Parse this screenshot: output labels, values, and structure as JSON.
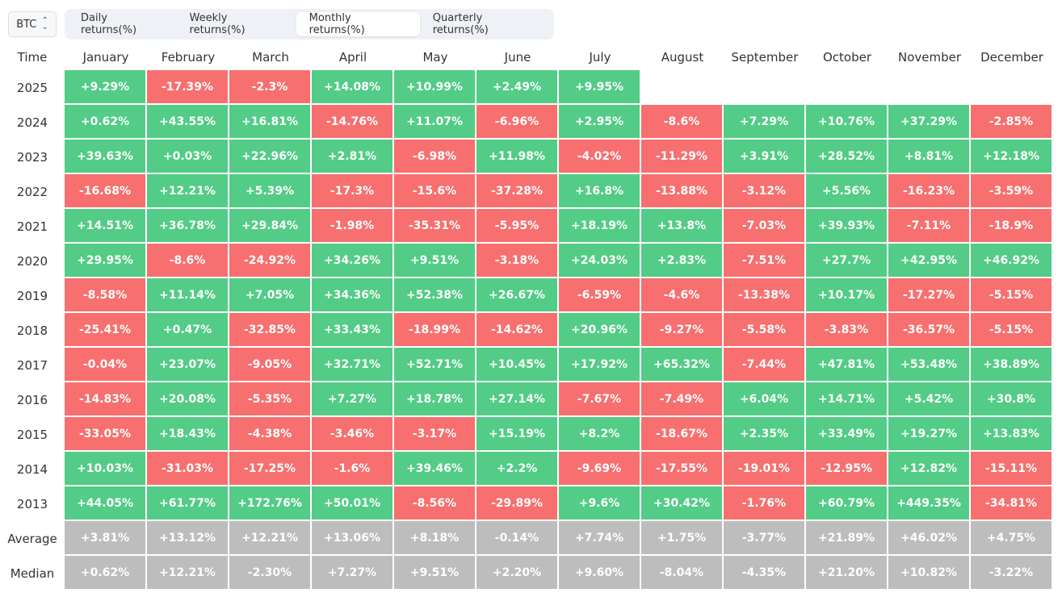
{
  "asset_selector": {
    "value": "BTC"
  },
  "tabs": [
    {
      "label": "Daily returns(%)",
      "active": false
    },
    {
      "label": "Weekly returns(%)",
      "active": false
    },
    {
      "label": "Monthly returns(%)",
      "active": true
    },
    {
      "label": "Quarterly returns(%)",
      "active": false
    }
  ],
  "table": {
    "time_header": "Time",
    "months": [
      "January",
      "February",
      "March",
      "April",
      "May",
      "June",
      "July",
      "August",
      "September",
      "October",
      "November",
      "December"
    ],
    "rows": [
      {
        "label": "2025",
        "values": [
          "+9.29%",
          "-17.39%",
          "-2.3%",
          "+14.08%",
          "+10.99%",
          "+2.49%",
          "+9.95%",
          "",
          "",
          "",
          "",
          ""
        ]
      },
      {
        "label": "2024",
        "values": [
          "+0.62%",
          "+43.55%",
          "+16.81%",
          "-14.76%",
          "+11.07%",
          "-6.96%",
          "+2.95%",
          "-8.6%",
          "+7.29%",
          "+10.76%",
          "+37.29%",
          "-2.85%"
        ]
      },
      {
        "label": "2023",
        "values": [
          "+39.63%",
          "+0.03%",
          "+22.96%",
          "+2.81%",
          "-6.98%",
          "+11.98%",
          "-4.02%",
          "-11.29%",
          "+3.91%",
          "+28.52%",
          "+8.81%",
          "+12.18%"
        ]
      },
      {
        "label": "2022",
        "values": [
          "-16.68%",
          "+12.21%",
          "+5.39%",
          "-17.3%",
          "-15.6%",
          "-37.28%",
          "+16.8%",
          "-13.88%",
          "-3.12%",
          "+5.56%",
          "-16.23%",
          "-3.59%"
        ]
      },
      {
        "label": "2021",
        "values": [
          "+14.51%",
          "+36.78%",
          "+29.84%",
          "-1.98%",
          "-35.31%",
          "-5.95%",
          "+18.19%",
          "+13.8%",
          "-7.03%",
          "+39.93%",
          "-7.11%",
          "-18.9%"
        ]
      },
      {
        "label": "2020",
        "values": [
          "+29.95%",
          "-8.6%",
          "-24.92%",
          "+34.26%",
          "+9.51%",
          "-3.18%",
          "+24.03%",
          "+2.83%",
          "-7.51%",
          "+27.7%",
          "+42.95%",
          "+46.92%"
        ]
      },
      {
        "label": "2019",
        "values": [
          "-8.58%",
          "+11.14%",
          "+7.05%",
          "+34.36%",
          "+52.38%",
          "+26.67%",
          "-6.59%",
          "-4.6%",
          "-13.38%",
          "+10.17%",
          "-17.27%",
          "-5.15%"
        ]
      },
      {
        "label": "2018",
        "values": [
          "-25.41%",
          "+0.47%",
          "-32.85%",
          "+33.43%",
          "-18.99%",
          "-14.62%",
          "+20.96%",
          "-9.27%",
          "-5.58%",
          "-3.83%",
          "-36.57%",
          "-5.15%"
        ]
      },
      {
        "label": "2017",
        "values": [
          "-0.04%",
          "+23.07%",
          "-9.05%",
          "+32.71%",
          "+52.71%",
          "+10.45%",
          "+17.92%",
          "+65.32%",
          "-7.44%",
          "+47.81%",
          "+53.48%",
          "+38.89%"
        ]
      },
      {
        "label": "2016",
        "values": [
          "-14.83%",
          "+20.08%",
          "-5.35%",
          "+7.27%",
          "+18.78%",
          "+27.14%",
          "-7.67%",
          "-7.49%",
          "+6.04%",
          "+14.71%",
          "+5.42%",
          "+30.8%"
        ]
      },
      {
        "label": "2015",
        "values": [
          "-33.05%",
          "+18.43%",
          "-4.38%",
          "-3.46%",
          "-3.17%",
          "+15.19%",
          "+8.2%",
          "-18.67%",
          "+2.35%",
          "+33.49%",
          "+19.27%",
          "+13.83%"
        ]
      },
      {
        "label": "2014",
        "values": [
          "+10.03%",
          "-31.03%",
          "-17.25%",
          "-1.6%",
          "+39.46%",
          "+2.2%",
          "-9.69%",
          "-17.55%",
          "-19.01%",
          "-12.95%",
          "+12.82%",
          "-15.11%"
        ]
      },
      {
        "label": "2013",
        "values": [
          "+44.05%",
          "+61.77%",
          "+172.76%",
          "+50.01%",
          "-8.56%",
          "-29.89%",
          "+9.6%",
          "+30.42%",
          "-1.76%",
          "+60.79%",
          "+449.35%",
          "-34.81%"
        ]
      },
      {
        "label": "Average",
        "summary": true,
        "values": [
          "+3.81%",
          "+13.12%",
          "+12.21%",
          "+13.06%",
          "+8.18%",
          "-0.14%",
          "+7.74%",
          "+1.75%",
          "-3.77%",
          "+21.89%",
          "+46.02%",
          "+4.75%"
        ]
      },
      {
        "label": "Median",
        "summary": true,
        "values": [
          "+0.62%",
          "+12.21%",
          "-2.30%",
          "+7.27%",
          "+9.51%",
          "+2.20%",
          "+9.60%",
          "-8.04%",
          "-4.35%",
          "+21.20%",
          "+10.82%",
          "-3.22%"
        ]
      }
    ]
  },
  "colors": {
    "positive": "#52cc86",
    "negative": "#f76f6f",
    "summary": "#bdbdbd"
  }
}
